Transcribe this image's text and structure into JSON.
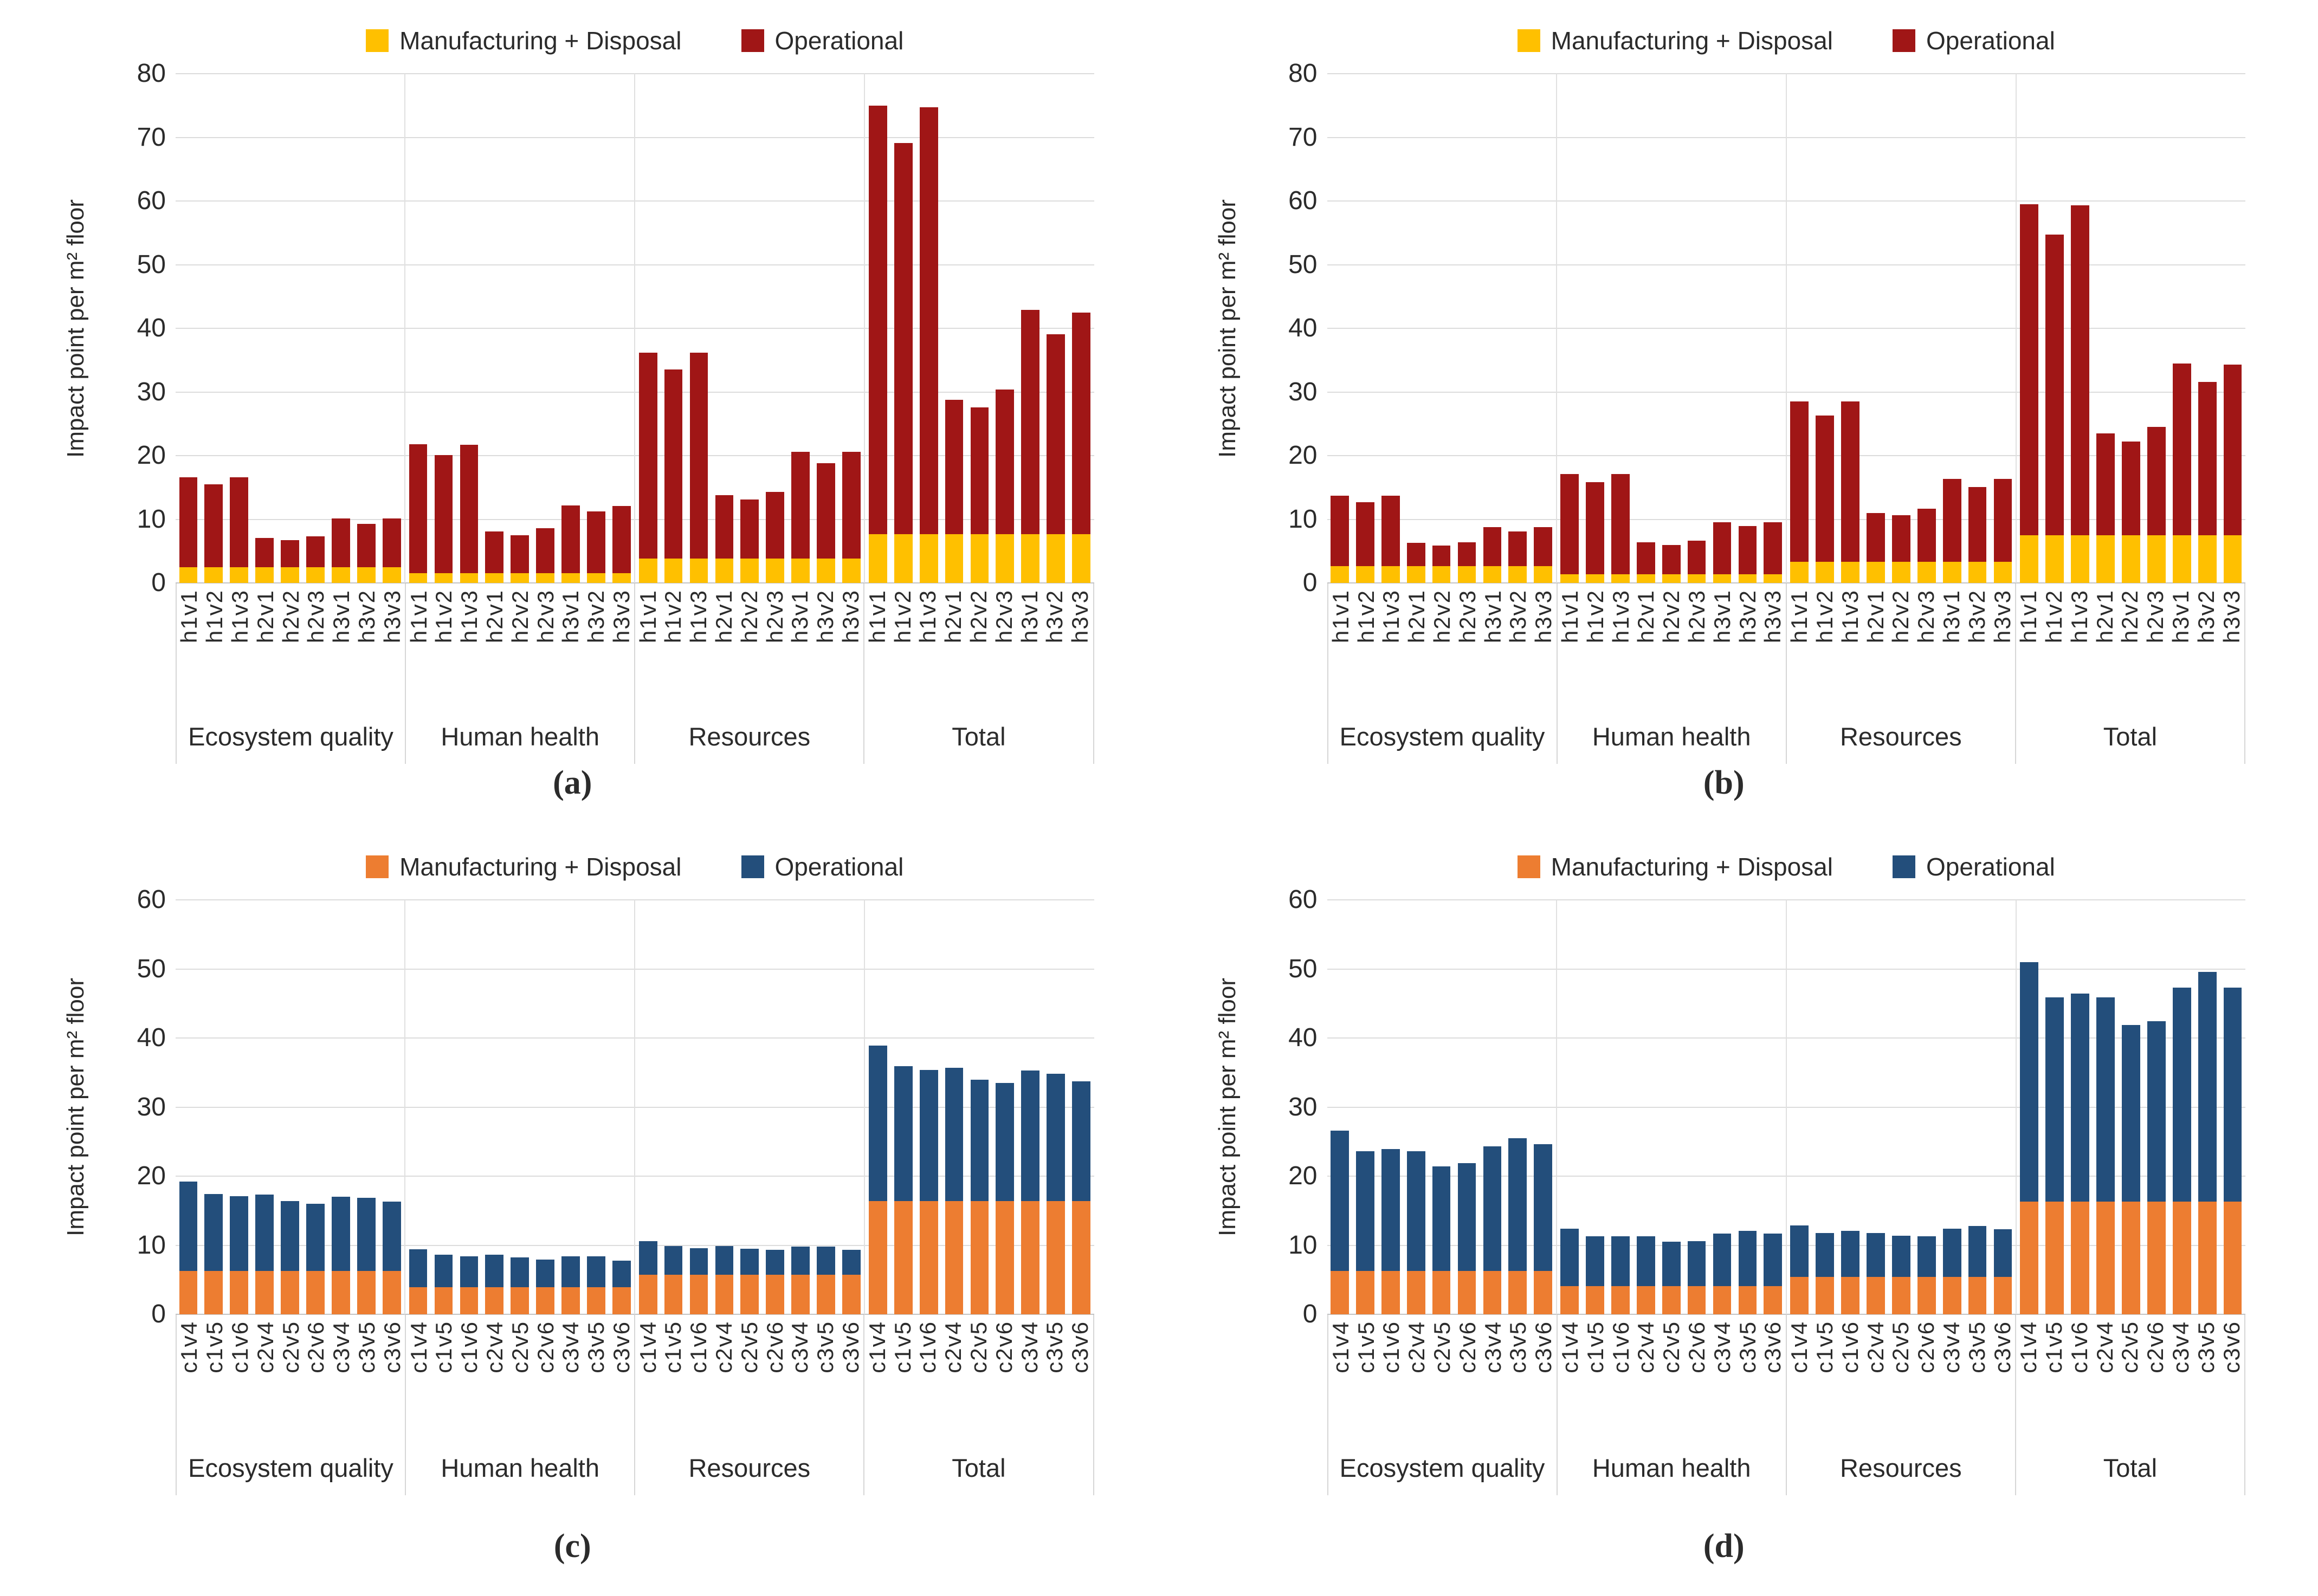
{
  "y_axis_title": "Impact point per m² floor",
  "legend_labels": {
    "manufacturing_disposal": "Manufacturing + Disposal",
    "operational": "Operational"
  },
  "colors": {
    "top_row_manufacturing": "#FFC000",
    "top_row_operational": "#A01616",
    "bottom_row_manufacturing": "#ED7D31",
    "bottom_row_operational": "#234E7B",
    "gridline": "#dcdcdc"
  },
  "chart_data": [
    {
      "id": "a",
      "caption": "(a)",
      "type": "bar",
      "stacked": true,
      "ylabel": "Impact point per m² floor",
      "ylim": [
        0,
        80
      ],
      "ytick_step": 10,
      "grid": true,
      "legend_position": "top",
      "group_labels": [
        "Ecosystem quality",
        "Human health",
        "Resources",
        "Total"
      ],
      "categories": [
        "h1v1",
        "h1v2",
        "h1v3",
        "h2v1",
        "h2v2",
        "h2v3",
        "h3v1",
        "h3v2",
        "h3v3"
      ],
      "series": [
        {
          "name": "Manufacturing + Disposal",
          "color": "#FFC000",
          "values_by_group": [
            [
              2.5,
              2.5,
              2.5,
              2.5,
              2.5,
              2.5,
              2.5,
              2.5,
              2.5
            ],
            [
              1.5,
              1.5,
              1.5,
              1.5,
              1.5,
              1.5,
              1.5,
              1.5,
              1.5
            ],
            [
              3.8,
              3.8,
              3.8,
              3.8,
              3.8,
              3.8,
              3.8,
              3.8,
              3.8
            ],
            [
              7.7,
              7.7,
              7.7,
              7.7,
              7.7,
              7.7,
              7.7,
              7.7,
              7.7
            ]
          ]
        },
        {
          "name": "Operational",
          "color": "#A01616",
          "values_by_group": [
            [
              14.1,
              13.0,
              14.1,
              4.6,
              4.2,
              4.8,
              7.6,
              6.8,
              7.6
            ],
            [
              20.3,
              18.6,
              20.2,
              6.6,
              6.0,
              7.1,
              10.7,
              9.7,
              10.6
            ],
            [
              32.4,
              29.7,
              32.4,
              10.0,
              9.3,
              10.5,
              16.8,
              15.0,
              16.8
            ],
            [
              67.3,
              61.4,
              67.0,
              21.1,
              19.9,
              22.7,
              35.2,
              31.4,
              34.8
            ]
          ]
        }
      ],
      "totals_by_group": [
        [
          16.6,
          15.5,
          16.6,
          7.1,
          6.7,
          7.3,
          10.1,
          9.3,
          10.1
        ],
        [
          21.8,
          20.1,
          21.7,
          8.1,
          7.5,
          8.6,
          12.2,
          11.2,
          12.1
        ],
        [
          36.2,
          33.5,
          36.2,
          13.8,
          13.1,
          14.3,
          20.6,
          18.8,
          20.6
        ],
        [
          75.0,
          69.1,
          74.7,
          28.8,
          27.6,
          30.4,
          42.9,
          39.1,
          42.5
        ]
      ]
    },
    {
      "id": "b",
      "caption": "(b)",
      "type": "bar",
      "stacked": true,
      "ylabel": "Impact point per m² floor",
      "ylim": [
        0,
        80
      ],
      "ytick_step": 10,
      "grid": true,
      "legend_position": "top",
      "group_labels": [
        "Ecosystem quality",
        "Human health",
        "Resources",
        "Total"
      ],
      "categories": [
        "h1v1",
        "h1v2",
        "h1v3",
        "h2v1",
        "h2v2",
        "h2v3",
        "h3v1",
        "h3v2",
        "h3v3"
      ],
      "series": [
        {
          "name": "Manufacturing + Disposal",
          "color": "#FFC000",
          "values_by_group": [
            [
              2.6,
              2.6,
              2.6,
              2.6,
              2.6,
              2.6,
              2.6,
              2.6,
              2.6
            ],
            [
              1.4,
              1.4,
              1.4,
              1.4,
              1.4,
              1.4,
              1.4,
              1.4,
              1.4
            ],
            [
              3.3,
              3.3,
              3.3,
              3.3,
              3.3,
              3.3,
              3.3,
              3.3,
              3.3
            ],
            [
              7.5,
              7.5,
              7.5,
              7.5,
              7.5,
              7.5,
              7.5,
              7.5,
              7.5
            ]
          ]
        },
        {
          "name": "Operational",
          "color": "#A01616",
          "values_by_group": [
            [
              11.1,
              10.1,
              11.1,
              3.7,
              3.3,
              3.8,
              6.2,
              5.5,
              6.2
            ],
            [
              15.7,
              14.4,
              15.7,
              5.0,
              4.6,
              5.2,
              8.1,
              7.5,
              8.1
            ],
            [
              25.2,
              23.0,
              25.2,
              7.7,
              7.3,
              8.4,
              13.0,
              11.8,
              13.0
            ],
            [
              52.0,
              47.2,
              51.8,
              16.0,
              14.7,
              17.0,
              27.0,
              24.1,
              26.8
            ]
          ]
        }
      ],
      "totals_by_group": [
        [
          13.7,
          12.7,
          13.7,
          6.3,
          5.9,
          6.4,
          8.8,
          8.1,
          8.8
        ],
        [
          17.1,
          15.8,
          17.1,
          6.4,
          6.0,
          6.6,
          9.5,
          8.9,
          9.5
        ],
        [
          28.5,
          26.3,
          28.5,
          11.0,
          10.6,
          11.7,
          16.3,
          15.1,
          16.3
        ],
        [
          59.5,
          54.7,
          59.3,
          23.5,
          22.2,
          24.5,
          34.5,
          31.6,
          34.3
        ]
      ]
    },
    {
      "id": "c",
      "caption": "(c)",
      "type": "bar",
      "stacked": true,
      "ylabel": "Impact point per m² floor",
      "ylim": [
        0,
        60
      ],
      "ytick_step": 10,
      "grid": true,
      "legend_position": "top",
      "group_labels": [
        "Ecosystem quality",
        "Human health",
        "Resources",
        "Total"
      ],
      "categories": [
        "c1v4",
        "c1v5",
        "c1v6",
        "c2v4",
        "c2v5",
        "c2v6",
        "c3v4",
        "c3v5",
        "c3v6"
      ],
      "series": [
        {
          "name": "Manufacturing + Disposal",
          "color": "#ED7D31",
          "values_by_group": [
            [
              6.3,
              6.3,
              6.3,
              6.3,
              6.3,
              6.3,
              6.3,
              6.3,
              6.3
            ],
            [
              3.9,
              3.9,
              3.9,
              3.9,
              3.9,
              3.9,
              3.9,
              3.9,
              3.9
            ],
            [
              5.7,
              5.7,
              5.7,
              5.7,
              5.7,
              5.7,
              5.7,
              5.7,
              5.7
            ],
            [
              16.4,
              16.4,
              16.4,
              16.4,
              16.4,
              16.4,
              16.4,
              16.4,
              16.4
            ]
          ]
        },
        {
          "name": "Operational",
          "color": "#234E7B",
          "values_by_group": [
            [
              12.9,
              11.1,
              10.8,
              11.0,
              10.1,
              9.7,
              10.7,
              10.6,
              10.0
            ],
            [
              5.5,
              4.7,
              4.5,
              4.7,
              4.3,
              4.0,
              4.5,
              4.5,
              3.9
            ],
            [
              4.9,
              4.2,
              3.9,
              4.2,
              3.8,
              3.6,
              4.1,
              4.1,
              3.6
            ],
            [
              22.5,
              19.5,
              19.0,
              19.3,
              17.6,
              17.1,
              18.9,
              18.4,
              17.3
            ]
          ]
        }
      ],
      "totals_by_group": [
        [
          19.2,
          17.4,
          17.1,
          17.3,
          16.4,
          16.0,
          17.0,
          16.9,
          16.3
        ],
        [
          9.4,
          8.6,
          8.4,
          8.6,
          8.2,
          7.9,
          8.4,
          8.4,
          7.8
        ],
        [
          10.6,
          9.9,
          9.6,
          9.9,
          9.5,
          9.3,
          9.8,
          9.8,
          9.3
        ],
        [
          38.9,
          35.9,
          35.4,
          35.7,
          34.0,
          33.5,
          35.3,
          34.8,
          33.7
        ]
      ]
    },
    {
      "id": "d",
      "caption": "(d)",
      "type": "bar",
      "stacked": true,
      "ylabel": "Impact point per m² floor",
      "ylim": [
        0,
        60
      ],
      "ytick_step": 10,
      "grid": true,
      "legend_position": "top",
      "group_labels": [
        "Ecosystem quality",
        "Human health",
        "Resources",
        "Total"
      ],
      "categories": [
        "c1v4",
        "c1v5",
        "c1v6",
        "c2v4",
        "c2v5",
        "c2v6",
        "c3v4",
        "c3v5",
        "c3v6"
      ],
      "series": [
        {
          "name": "Manufacturing + Disposal",
          "color": "#ED7D31",
          "values_by_group": [
            [
              6.3,
              6.3,
              6.3,
              6.3,
              6.3,
              6.3,
              6.3,
              6.3,
              6.3
            ],
            [
              4.1,
              4.1,
              4.1,
              4.1,
              4.1,
              4.1,
              4.1,
              4.1,
              4.1
            ],
            [
              5.4,
              5.4,
              5.4,
              5.4,
              5.4,
              5.4,
              5.4,
              5.4,
              5.4
            ],
            [
              16.3,
              16.3,
              16.3,
              16.3,
              16.3,
              16.3,
              16.3,
              16.3,
              16.3
            ]
          ]
        },
        {
          "name": "Operational",
          "color": "#234E7B",
          "values_by_group": [
            [
              20.3,
              17.3,
              17.6,
              17.3,
              15.1,
              15.6,
              18.0,
              19.2,
              18.3
            ],
            [
              8.3,
              7.2,
              7.2,
              7.2,
              6.4,
              6.5,
              7.6,
              8.0,
              7.6
            ],
            [
              7.5,
              6.4,
              6.7,
              6.4,
              6.0,
              5.9,
              7.0,
              7.4,
              6.9
            ],
            [
              34.7,
              29.6,
              30.1,
              29.6,
              25.6,
              26.1,
              31.0,
              33.3,
              31.0
            ]
          ]
        }
      ],
      "totals_by_group": [
        [
          26.6,
          23.6,
          23.9,
          23.6,
          21.4,
          21.9,
          24.3,
          25.5,
          24.6
        ],
        [
          12.4,
          11.3,
          11.3,
          11.3,
          10.5,
          10.6,
          11.7,
          12.1,
          11.7
        ],
        [
          12.9,
          11.8,
          12.1,
          11.8,
          11.4,
          11.3,
          12.4,
          12.8,
          12.3
        ],
        [
          51.0,
          45.9,
          46.4,
          45.9,
          41.9,
          42.4,
          47.3,
          49.6,
          47.3
        ]
      ]
    }
  ]
}
